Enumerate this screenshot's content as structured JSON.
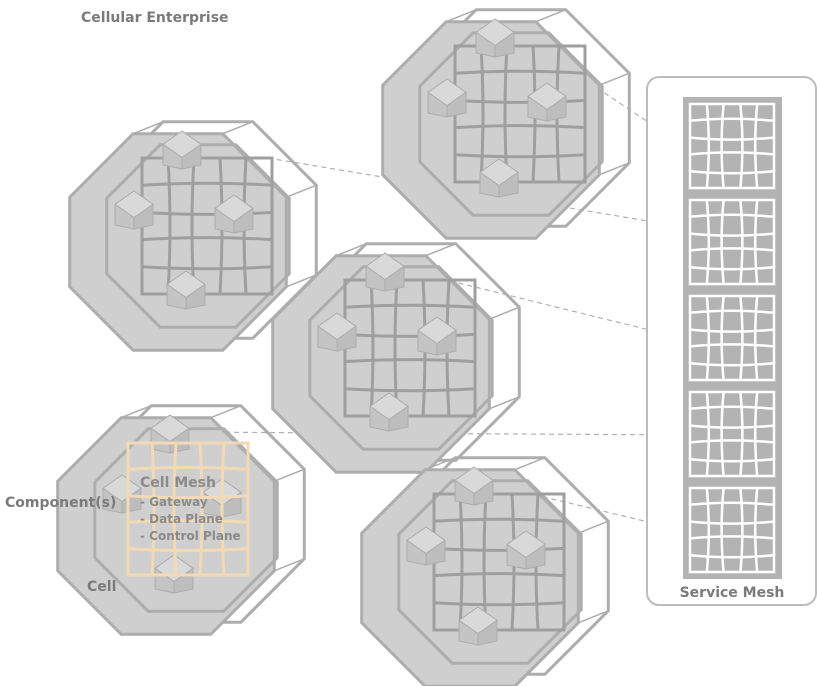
{
  "title": "Cellular Enterprise",
  "labels": {
    "components": "Component(s)",
    "cell": "Cell",
    "service_mesh": "Service Mesh"
  },
  "cell_mesh": {
    "title": "Cell Mesh",
    "items": [
      "- Gateway",
      "- Data Plane",
      "- Control Plane"
    ]
  },
  "colors": {
    "cell_fill": "#cfcfcf",
    "cell_stroke": "#adadad",
    "component_fill": "#c4c4c4",
    "mesh_grid": "#9f9f9f",
    "highlight": "#f3d9b4",
    "highlight_text": "#8a8a8a",
    "service_mesh_bg": "#b3b3b3",
    "dash_line": "#b0b0b0",
    "label_text": "#7a7a7a"
  },
  "icons": [
    "cell-icon",
    "component-icon",
    "mesh-grid-icon"
  ]
}
